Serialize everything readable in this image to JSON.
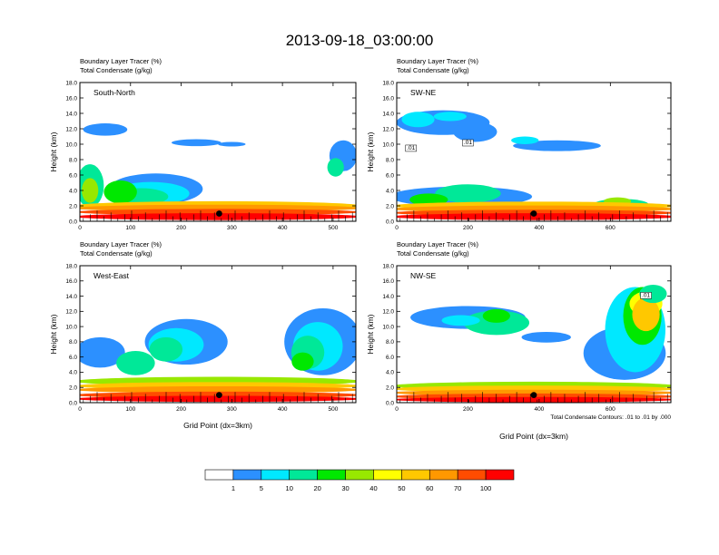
{
  "figure_title": "2013-09-18_03:00:00",
  "xlabel": "Grid Point (dx=3km)",
  "contour_note": "Total Condensate Contours: .01 to .01 by .000",
  "field_label": "Boundary Layer Tracer   (%)",
  "contour_label": "Total Condensate   (g/kg)",
  "ylabel": "Height (km)",
  "colorbar": {
    "labels": [
      "1",
      "5",
      "10",
      "20",
      "30",
      "40",
      "50",
      "60",
      "70",
      "100"
    ],
    "colors": [
      "#ffffff",
      "#2c90ff",
      "#00e8ff",
      "#00e898",
      "#00e800",
      "#98e800",
      "#ffff00",
      "#ffc800",
      "#ff9800",
      "#ff4c00",
      "#ff0000"
    ]
  },
  "chart_data": [
    {
      "type": "contour-cross-section",
      "panel_title": "South-North",
      "xlim": [
        0,
        545
      ],
      "ylim": [
        0,
        18
      ],
      "xticks": [
        "0",
        "100",
        "200",
        "300",
        "400",
        "500"
      ],
      "xtick_values": [
        0,
        100,
        200,
        300,
        400,
        500
      ],
      "yticks": [
        "0.0",
        "2.0",
        "4.0",
        "6.0",
        "8.0",
        "10.0",
        "12.0",
        "14.0",
        "16.0",
        "18.0"
      ],
      "ytick_values": [
        0,
        2,
        4,
        6,
        8,
        10,
        12,
        14,
        16,
        18
      ],
      "marker": [
        275,
        1.0
      ]
    },
    {
      "type": "contour-cross-section",
      "panel_title": "SW-NE",
      "xlim": [
        0,
        770
      ],
      "ylim": [
        0,
        18
      ],
      "xticks": [
        "0",
        "200",
        "400",
        "600"
      ],
      "xtick_values": [
        0,
        200,
        400,
        600
      ],
      "yticks": [
        "0.0",
        "2.0",
        "4.0",
        "6.0",
        "8.0",
        "10.0",
        "12.0",
        "14.0",
        "16.0",
        "18.0"
      ],
      "ytick_values": [
        0,
        2,
        4,
        6,
        8,
        10,
        12,
        14,
        16,
        18
      ],
      "marker": [
        385,
        1.0
      ],
      "contour_labels": [
        ".01",
        ".01"
      ]
    },
    {
      "type": "contour-cross-section",
      "panel_title": "West-East",
      "xlim": [
        0,
        545
      ],
      "ylim": [
        0,
        18
      ],
      "xticks": [
        "0",
        "100",
        "200",
        "300",
        "400",
        "500"
      ],
      "xtick_values": [
        0,
        100,
        200,
        300,
        400,
        500
      ],
      "yticks": [
        "0.0",
        "2.0",
        "4.0",
        "6.0",
        "8.0",
        "10.0",
        "12.0",
        "14.0",
        "16.0",
        "18.0"
      ],
      "ytick_values": [
        0,
        2,
        4,
        6,
        8,
        10,
        12,
        14,
        16,
        18
      ],
      "marker": [
        275,
        1.0
      ]
    },
    {
      "type": "contour-cross-section",
      "panel_title": "NW-SE",
      "xlim": [
        0,
        770
      ],
      "ylim": [
        0,
        18
      ],
      "xticks": [
        "0",
        "200",
        "400",
        "600"
      ],
      "xtick_values": [
        0,
        200,
        400,
        600
      ],
      "yticks": [
        "0.0",
        "2.0",
        "4.0",
        "6.0",
        "8.0",
        "10.0",
        "12.0",
        "14.0",
        "16.0",
        "18.0"
      ],
      "ytick_values": [
        0,
        2,
        4,
        6,
        8,
        10,
        12,
        14,
        16,
        18
      ],
      "marker": [
        385,
        1.0
      ],
      "contour_labels": [
        ".01"
      ]
    }
  ]
}
